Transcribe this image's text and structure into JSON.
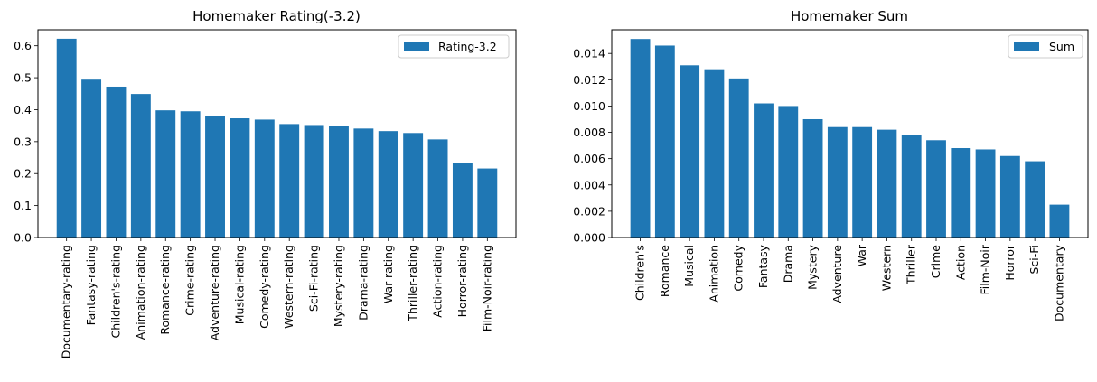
{
  "chart_data": [
    {
      "type": "bar",
      "title": "Homemaker Rating(-3.2)",
      "xlabel": "",
      "ylabel": "",
      "categories": [
        "Documentary-rating",
        "Fantasy-rating",
        "Children's-rating",
        "Animation-rating",
        "Romance-rating",
        "Crime-rating",
        "Adventure-rating",
        "Musical-rating",
        "Comedy-rating",
        "Western-rating",
        "Sci-Fi-rating",
        "Mystery-rating",
        "Drama-rating",
        "War-rating",
        "Thriller-rating",
        "Action-rating",
        "Horror-rating",
        "Film-Noir-rating"
      ],
      "series": [
        {
          "name": "Rating-3.2",
          "values": [
            0.622,
            0.494,
            0.472,
            0.449,
            0.398,
            0.395,
            0.381,
            0.373,
            0.369,
            0.355,
            0.352,
            0.35,
            0.341,
            0.333,
            0.327,
            0.307,
            0.233,
            0.216
          ]
        }
      ],
      "ylim": [
        0,
        0.65
      ],
      "yticks": [
        0.0,
        0.1,
        0.2,
        0.3,
        0.4,
        0.5,
        0.6
      ],
      "ytick_labels": [
        "0.0",
        "0.1",
        "0.2",
        "0.3",
        "0.4",
        "0.5",
        "0.6"
      ],
      "grid": false,
      "legend_position": "top-right",
      "color": "#1f77b4"
    },
    {
      "type": "bar",
      "title": "Homemaker Sum",
      "xlabel": "",
      "ylabel": "",
      "categories": [
        "Children's",
        "Romance",
        "Musical",
        "Animation",
        "Comedy",
        "Fantasy",
        "Drama",
        "Mystery",
        "Adventure",
        "War",
        "Western",
        "Thriller",
        "Crime",
        "Action",
        "Film-Noir",
        "Horror",
        "Sci-Fi",
        "Documentary"
      ],
      "series": [
        {
          "name": "Sum",
          "values": [
            0.0151,
            0.0146,
            0.0131,
            0.0128,
            0.0121,
            0.0102,
            0.01,
            0.009,
            0.0084,
            0.0084,
            0.0082,
            0.0078,
            0.0074,
            0.0068,
            0.0067,
            0.0062,
            0.0058,
            0.0025
          ]
        }
      ],
      "ylim": [
        0,
        0.0158
      ],
      "yticks": [
        0.0,
        0.002,
        0.004,
        0.006,
        0.008,
        0.01,
        0.012,
        0.014
      ],
      "ytick_labels": [
        "0.000",
        "0.002",
        "0.004",
        "0.006",
        "0.008",
        "0.010",
        "0.012",
        "0.014"
      ],
      "grid": false,
      "legend_position": "top-right",
      "color": "#1f77b4"
    }
  ]
}
